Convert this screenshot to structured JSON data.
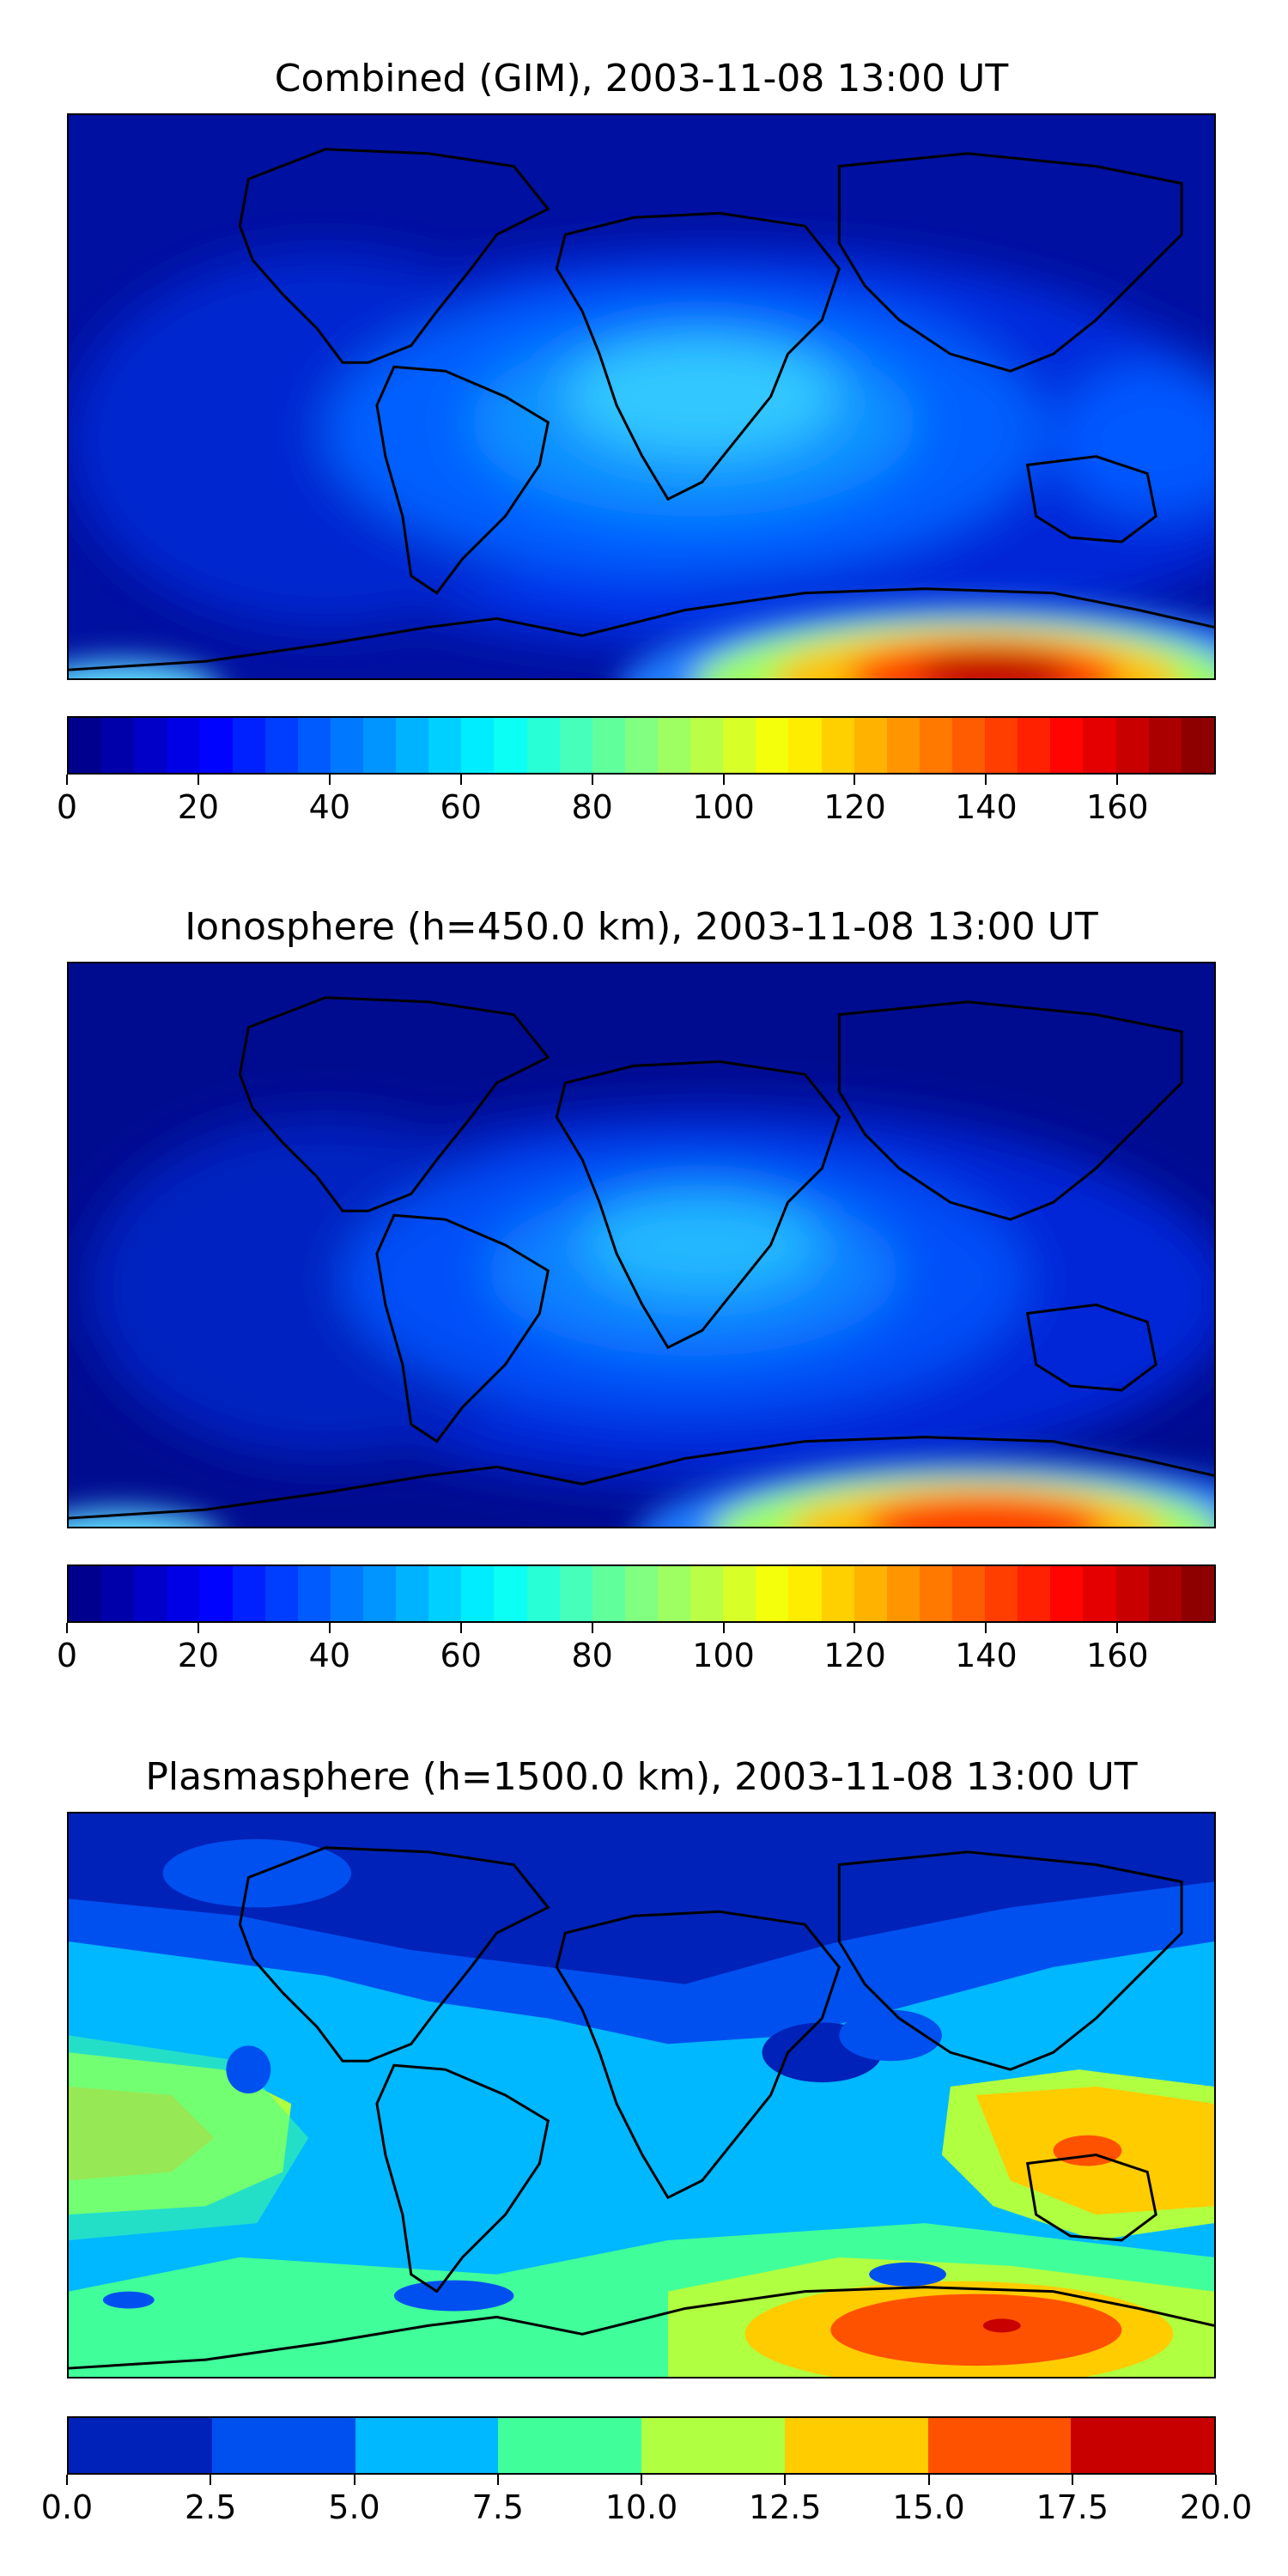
{
  "panels": [
    {
      "title": "Combined (GIM), 2003-11-08 13:00 UT",
      "colorbar": {
        "min": 0,
        "max": 175,
        "levels": 35,
        "ticks": [
          "0",
          "20",
          "40",
          "60",
          "80",
          "100",
          "120",
          "140",
          "160"
        ],
        "tick_values": [
          0,
          20,
          40,
          60,
          80,
          100,
          120,
          140,
          160
        ]
      }
    },
    {
      "title": "Ionosphere  (h=450.0 km), 2003-11-08 13:00 UT",
      "colorbar": {
        "min": 0,
        "max": 175,
        "levels": 35,
        "ticks": [
          "0",
          "20",
          "40",
          "60",
          "80",
          "100",
          "120",
          "140",
          "160"
        ],
        "tick_values": [
          0,
          20,
          40,
          60,
          80,
          100,
          120,
          140,
          160
        ]
      }
    },
    {
      "title": "Plasmasphere (h=1500.0 km), 2003-11-08 13:00 UT",
      "colorbar": {
        "min": 0,
        "max": 20,
        "levels": 8,
        "ticks": [
          "0.0",
          "2.5",
          "5.0",
          "7.5",
          "10.0",
          "12.5",
          "15.0",
          "17.5",
          "20.0"
        ],
        "tick_values": [
          0,
          2.5,
          5,
          7.5,
          10,
          12.5,
          15,
          17.5,
          20
        ]
      }
    }
  ],
  "colors": {
    "background": "#00159a",
    "coastline": "#000000",
    "plasma_levels": [
      "#0022b8",
      "#0050f0",
      "#00b8ff",
      "#40ff9a",
      "#b0ff40",
      "#ffcc00",
      "#ff5200",
      "#c80000"
    ]
  }
}
